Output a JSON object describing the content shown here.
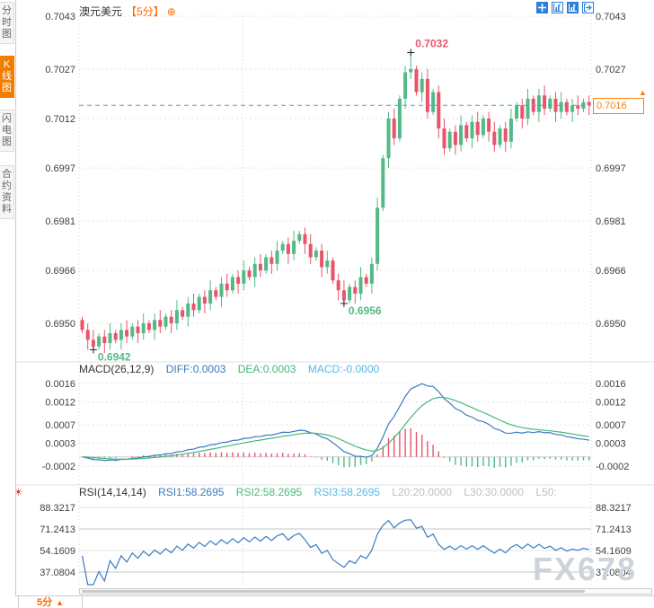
{
  "header": {
    "title": "澳元美元",
    "period": "【5分】",
    "plus_icon": "⊕"
  },
  "sidebar": {
    "tabs": [
      {
        "label": "分时图",
        "active": false
      },
      {
        "label": "K线图",
        "active": true
      },
      {
        "label": "闪电图",
        "active": false
      },
      {
        "label": "合约资料",
        "active": false
      }
    ]
  },
  "toolbar": {
    "icons": [
      "crosshair",
      "axis-zoom-out",
      "axis-zoom-in",
      "exit-chart"
    ]
  },
  "macd_header": {
    "title": "MACD(26,12,9)",
    "diff": "DIFF:0.0003",
    "dea": "DEA:0.0003",
    "macd": "MACD:-0.0000"
  },
  "rsi_header": {
    "title": "RSI(14,14,14)",
    "rsi1": "RSI1:58.2695",
    "rsi2": "RSI2:58.2695",
    "rsi3": "RSI3:58.2695",
    "l20": "L20:20.0000",
    "l30": "L30:30.0000",
    "l50": "L50:"
  },
  "icons": {
    "settings_sun": "☀",
    "price_arrow": "▲"
  },
  "price_badge": {
    "value": "0.7016"
  },
  "watermark": {
    "text": "FX678"
  },
  "bottom": {
    "period_label": "5分",
    "period_arrow": "▲"
  },
  "colors": {
    "up": "#53b987",
    "down": "#e9546b",
    "diff_line": "#3a7bbf",
    "dea_line": "#45b97c",
    "accent_orange": "#f7820a",
    "price_line": "#5599dd",
    "grid": "#e4e4e4",
    "grid_dark": "#c4c4c4",
    "axis_text": "#404040",
    "marker_cross": "#222222"
  },
  "chart_data": [
    {
      "type": "candlestick",
      "title": "澳元美元 5分",
      "y_axis_labels": [
        "0.7043",
        "0.7027",
        "0.7012",
        "0.6997",
        "0.6981",
        "0.6966",
        "0.6950"
      ],
      "y_axis_values": [
        0.7043,
        0.7027,
        0.7012,
        0.6997,
        0.6981,
        0.6966,
        0.695
      ],
      "open_first": 0.6951,
      "closes": [
        0.6948,
        0.6945,
        0.6943,
        0.6946,
        0.6944,
        0.6947,
        0.6945,
        0.6948,
        0.6946,
        0.6949,
        0.6947,
        0.695,
        0.6948,
        0.6951,
        0.6949,
        0.6952,
        0.695,
        0.6954,
        0.6952,
        0.6956,
        0.6954,
        0.6958,
        0.6956,
        0.696,
        0.6958,
        0.6962,
        0.696,
        0.6964,
        0.6962,
        0.6966,
        0.6964,
        0.6968,
        0.6966,
        0.697,
        0.6968,
        0.6972,
        0.6974,
        0.6971,
        0.6975,
        0.6977,
        0.6974,
        0.697,
        0.6972,
        0.6967,
        0.6969,
        0.6963,
        0.696,
        0.6957,
        0.6961,
        0.6959,
        0.6964,
        0.6962,
        0.6968,
        0.6985,
        0.7,
        0.7012,
        0.7006,
        0.7018,
        0.7026,
        0.7027,
        0.702,
        0.7024,
        0.7014,
        0.702,
        0.7009,
        0.7003,
        0.7008,
        0.7004,
        0.701,
        0.7006,
        0.7011,
        0.7007,
        0.7012,
        0.7008,
        0.7004,
        0.7009,
        0.7005,
        0.7012,
        0.7016,
        0.7012,
        0.7018,
        0.7014,
        0.7019,
        0.7015,
        0.7018,
        0.7014,
        0.7017,
        0.7014,
        0.7016,
        0.7015,
        0.7017,
        0.7016
      ],
      "markers": [
        {
          "index": 2,
          "kind": "low",
          "value": 0.6942,
          "label": "0.6942"
        },
        {
          "index": 47,
          "kind": "low",
          "value": 0.6956,
          "label": "0.6956"
        },
        {
          "index": 59,
          "kind": "high",
          "value": 0.7032,
          "label": "0.7032"
        }
      ],
      "last_price": 0.7016,
      "last_price_label": "0.7016"
    },
    {
      "type": "macd",
      "params": [
        26,
        12,
        9
      ],
      "y_axis_labels": [
        "0.0016",
        "0.0012",
        "0.0007",
        "0.0003",
        "-0.0002"
      ],
      "y_axis_values": [
        0.0016,
        0.0012,
        0.0007,
        0.0003,
        -0.0002
      ],
      "diff_last": 0.0003,
      "dea_last": 0.0003,
      "macd_last": -0.0
    },
    {
      "type": "rsi",
      "params": [
        14,
        14,
        14
      ],
      "y_axis_labels": [
        "88.3217",
        "71.2413",
        "54.1609",
        "37.0804"
      ],
      "y_axis_values": [
        88.3217,
        71.2413,
        54.1609,
        37.0804
      ],
      "rsi_last": 58.2695,
      "levels": {
        "l20": 20.0,
        "l30": 30.0
      }
    }
  ]
}
